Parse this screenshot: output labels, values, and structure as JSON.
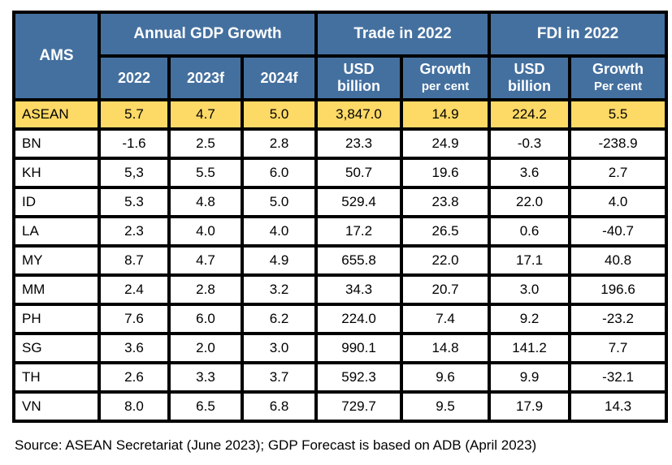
{
  "header": {
    "ams": "AMS",
    "groups": [
      "Annual GDP Growth",
      "Trade in 2022",
      "FDI in 2022"
    ],
    "columns": [
      {
        "line1": "2022",
        "line2": ""
      },
      {
        "line1": "2023f",
        "line2": ""
      },
      {
        "line1": "2024f",
        "line2": ""
      },
      {
        "line1": "USD",
        "line2": "billion"
      },
      {
        "line1": "Growth",
        "line2": "per cent"
      },
      {
        "line1": "USD",
        "line2": "billion"
      },
      {
        "line1": "Growth",
        "line2": "Per cent"
      }
    ]
  },
  "rows": [
    [
      "ASEAN",
      "5.7",
      "4.7",
      "5.0",
      "3,847.0",
      "14.9",
      "224.2",
      "5.5"
    ],
    [
      "BN",
      "-1.6",
      "2.5",
      "2.8",
      "23.3",
      "24.9",
      "-0.3",
      "-238.9"
    ],
    [
      "KH",
      "5,3",
      "5.5",
      "6.0",
      "50.7",
      "19.6",
      "3.6",
      "2.7"
    ],
    [
      "ID",
      "5.3",
      "4.8",
      "5.0",
      "529.4",
      "23.8",
      "22.0",
      "4.0"
    ],
    [
      "LA",
      "2.3",
      "4.0",
      "4.0",
      "17.2",
      "26.5",
      "0.6",
      "-40.7"
    ],
    [
      "MY",
      "8.7",
      "4.7",
      "4.9",
      "655.8",
      "22.0",
      "17.1",
      "40.8"
    ],
    [
      "MM",
      "2.4",
      "2.8",
      "3.2",
      "34.3",
      "20.7",
      "3.0",
      "196.6"
    ],
    [
      "PH",
      "7.6",
      "6.0",
      "6.2",
      "224.0",
      "7.4",
      "9.2",
      "-23.2"
    ],
    [
      "SG",
      "3.6",
      "2.0",
      "3.0",
      "990.1",
      "14.8",
      "141.2",
      "7.7"
    ],
    [
      "TH",
      "2.6",
      "3.3",
      "3.7",
      "592.3",
      "9.6",
      "9.9",
      "-32.1"
    ],
    [
      "VN",
      "8.0",
      "6.5",
      "6.8",
      "729.7",
      "9.5",
      "17.9",
      "14.3"
    ]
  ],
  "source": "Source: ASEAN Secretariat (June 2023); GDP Forecast is based on ADB (April 2023)",
  "colors": {
    "header_bg": "#44709f",
    "highlight_row": "#fdd966",
    "border": "#000000"
  }
}
